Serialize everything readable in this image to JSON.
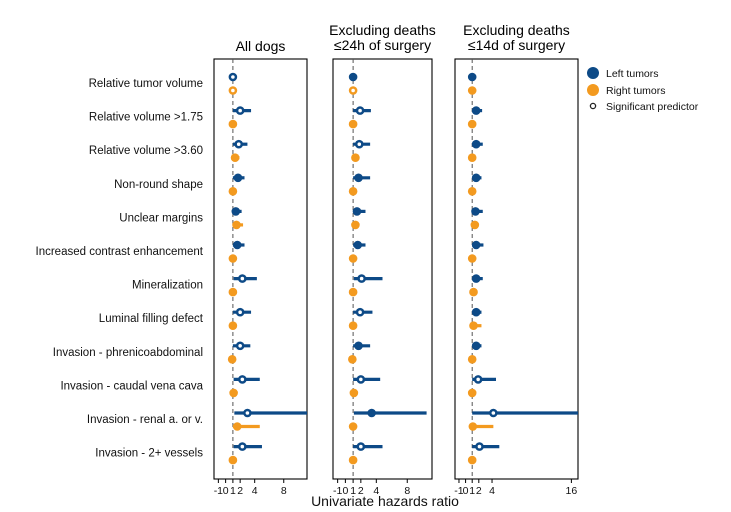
{
  "chart_data": {
    "type": "scatter",
    "subtype": "forest-plot",
    "xlabel": "Univariate hazards ratio",
    "colors": {
      "left": "#0d4a87",
      "right": "#f39a1f",
      "reference_line": "#555555"
    },
    "legend": {
      "placement": "right",
      "left": "Left tumors",
      "right": "Right tumors",
      "significant": "Significant predictor"
    },
    "categories": [
      "Relative tumor volume",
      "Relative volume >1.75",
      "Relative volume >3.60",
      "Non-round shape",
      "Unclear margins",
      "Increased contrast enhancement",
      "Mineralization",
      "Luminal filling defect",
      "Invasion - phrenicoabdominal",
      "Invasion - caudal vena cava",
      "Invasion - renal a. or v.",
      "Invasion - 2+ vessels"
    ],
    "panels": [
      {
        "title": [
          "All dogs"
        ],
        "xlim": [
          -1.6,
          11.2
        ],
        "ticks": [
          -1,
          0,
          1,
          2,
          4,
          8
        ],
        "tick_labels": [
          "-1",
          "0",
          "1",
          "2",
          "4",
          "8"
        ],
        "reference": 1,
        "left": {
          "hr": [
            1.0,
            2.0,
            1.8,
            1.7,
            1.4,
            1.6,
            2.3,
            2.0,
            2.0,
            2.3,
            3.0,
            2.3
          ],
          "lo": [
            1.0,
            1.0,
            1.0,
            1.0,
            1.0,
            1.0,
            1.1,
            1.0,
            1.0,
            1.1,
            1.2,
            1.1
          ],
          "hi": [
            1.1,
            3.5,
            3.0,
            2.6,
            2.2,
            2.6,
            4.3,
            3.5,
            3.4,
            4.7,
            11.2,
            5.0
          ],
          "sig": [
            true,
            true,
            true,
            false,
            false,
            false,
            true,
            true,
            true,
            true,
            true,
            true
          ]
        },
        "right": {
          "hr": [
            1.0,
            1.0,
            1.3,
            1.0,
            1.5,
            1.0,
            1.0,
            1.0,
            0.9,
            1.1,
            1.6,
            1.0
          ],
          "lo": [
            1.0,
            0.9,
            1.0,
            0.8,
            1.0,
            0.8,
            0.8,
            0.7,
            0.7,
            0.8,
            1.0,
            0.8
          ],
          "hi": [
            1.0,
            1.2,
            1.9,
            1.3,
            2.4,
            1.4,
            1.3,
            1.3,
            1.1,
            1.5,
            4.7,
            1.2
          ],
          "sig": [
            true,
            false,
            false,
            false,
            false,
            false,
            false,
            false,
            false,
            false,
            false,
            false
          ]
        }
      },
      {
        "title": [
          "Excluding deaths",
          "≤24h of surgery"
        ],
        "xlim": [
          -1.6,
          11.2
        ],
        "ticks": [
          -1,
          0,
          1,
          2,
          4,
          8
        ],
        "tick_labels": [
          "-1",
          "0",
          "1",
          "2",
          "4",
          "8"
        ],
        "reference": 1,
        "left": {
          "hr": [
            1.0,
            1.9,
            1.8,
            1.7,
            1.5,
            1.6,
            2.1,
            1.9,
            1.7,
            2.0,
            3.4,
            2.0
          ],
          "lo": [
            1.0,
            1.0,
            1.0,
            1.0,
            1.0,
            1.0,
            1.1,
            1.0,
            1.0,
            1.0,
            1.1,
            1.0
          ],
          "hi": [
            1.1,
            3.3,
            3.2,
            3.2,
            2.6,
            2.6,
            4.8,
            3.5,
            3.2,
            4.5,
            10.5,
            4.8
          ],
          "sig": [
            false,
            true,
            true,
            false,
            false,
            false,
            true,
            true,
            false,
            true,
            false,
            true
          ]
        },
        "right": {
          "hr": [
            1.0,
            1.0,
            1.3,
            1.0,
            1.3,
            1.0,
            1.0,
            1.0,
            0.9,
            1.1,
            1.0,
            1.0
          ],
          "lo": [
            1.0,
            0.9,
            0.9,
            0.8,
            0.9,
            0.8,
            0.8,
            0.8,
            0.7,
            0.8,
            0.7,
            0.8
          ],
          "hi": [
            1.0,
            1.2,
            1.6,
            1.2,
            1.6,
            1.2,
            1.2,
            1.2,
            1.1,
            1.4,
            1.5,
            1.1
          ],
          "sig": [
            true,
            false,
            false,
            false,
            false,
            false,
            false,
            false,
            false,
            false,
            false,
            false
          ]
        }
      },
      {
        "title": [
          "Excluding deaths",
          "≤14d of surgery"
        ],
        "xlim": [
          -1.6,
          17.0
        ],
        "ticks": [
          -1,
          0,
          1,
          2,
          4,
          16
        ],
        "tick_labels": [
          "-1",
          "0",
          "1",
          "2",
          "4",
          "16"
        ],
        "reference": 1,
        "left": {
          "hr": [
            1.0,
            1.6,
            1.6,
            1.6,
            1.5,
            1.6,
            1.6,
            1.6,
            1.6,
            1.9,
            4.2,
            2.1
          ],
          "lo": [
            1.0,
            1.0,
            1.0,
            1.0,
            1.0,
            1.0,
            1.0,
            1.0,
            1.0,
            1.0,
            1.0,
            1.0
          ],
          "hi": [
            1.1,
            2.5,
            2.6,
            2.4,
            2.6,
            2.7,
            2.6,
            2.4,
            2.4,
            4.6,
            17.0,
            5.1
          ],
          "sig": [
            false,
            false,
            false,
            false,
            false,
            false,
            false,
            false,
            false,
            true,
            true,
            true
          ]
        },
        "right": {
          "hr": [
            1.0,
            1.0,
            1.0,
            1.0,
            1.4,
            1.0,
            1.2,
            1.2,
            1.0,
            1.0,
            1.1,
            1.0
          ],
          "lo": [
            1.0,
            0.9,
            0.8,
            0.8,
            1.0,
            0.8,
            0.9,
            0.8,
            0.8,
            0.8,
            0.8,
            0.9
          ],
          "hi": [
            1.0,
            1.2,
            1.4,
            1.4,
            1.9,
            1.3,
            1.6,
            2.4,
            1.1,
            1.2,
            4.2,
            1.2
          ],
          "sig": [
            false,
            false,
            false,
            false,
            false,
            false,
            false,
            false,
            false,
            false,
            false,
            false
          ]
        }
      }
    ]
  }
}
